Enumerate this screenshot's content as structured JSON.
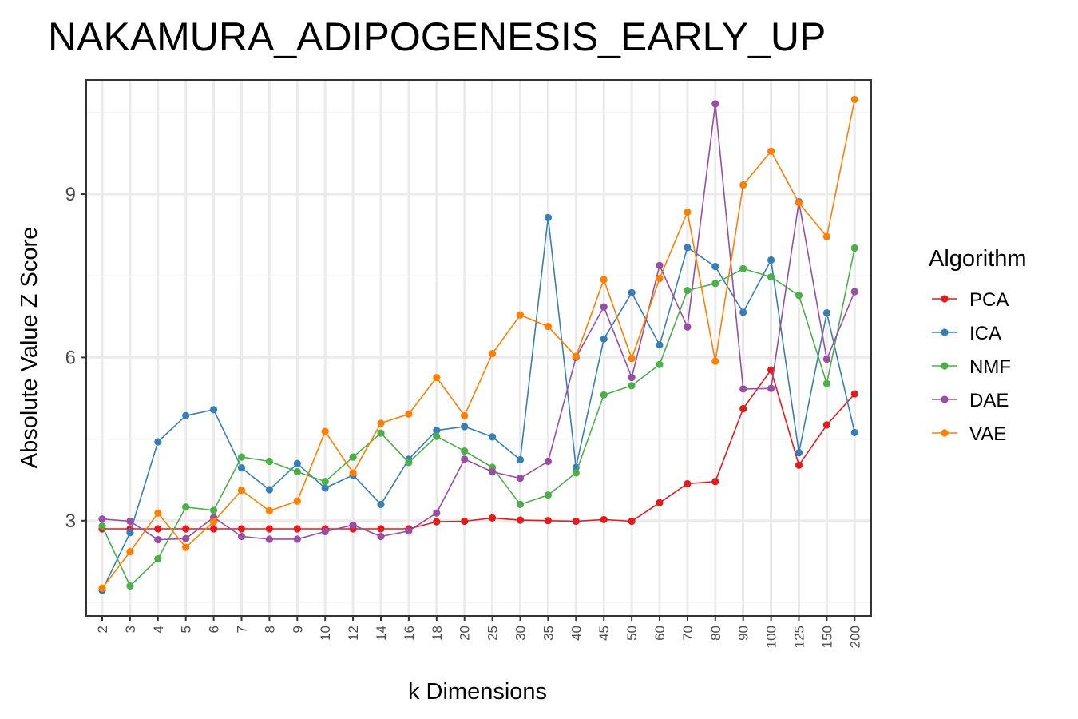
{
  "chart_data": {
    "type": "line",
    "title": "NAKAMURA_ADIPOGENESIS_EARLY_UP",
    "xlabel": "k Dimensions",
    "ylabel": "Absolute Value Z Score",
    "categories": [
      "2",
      "3",
      "4",
      "5",
      "6",
      "7",
      "8",
      "9",
      "10",
      "12",
      "14",
      "16",
      "18",
      "20",
      "25",
      "30",
      "35",
      "40",
      "45",
      "50",
      "60",
      "70",
      "80",
      "90",
      "100",
      "125",
      "150",
      "200"
    ],
    "yticks": [
      3,
      6,
      9
    ],
    "ylim": [
      1.25,
      11.1
    ],
    "grid": true,
    "legend": {
      "title": "Algorithm",
      "position": "right"
    },
    "series": [
      {
        "name": "PCA",
        "color": "#e41a1c",
        "values": [
          2.85,
          2.85,
          2.85,
          2.85,
          2.85,
          2.85,
          2.85,
          2.85,
          2.85,
          2.85,
          2.85,
          2.85,
          2.98,
          2.99,
          3.05,
          3.01,
          3.0,
          2.99,
          3.02,
          2.99,
          3.33,
          3.68,
          3.72,
          5.06,
          5.77,
          4.02,
          4.76,
          5.33
        ]
      },
      {
        "name": "ICA",
        "color": "#377eb8",
        "values": [
          1.72,
          2.78,
          4.45,
          4.93,
          5.04,
          3.97,
          3.57,
          4.05,
          3.6,
          3.84,
          3.3,
          4.13,
          4.66,
          4.73,
          4.54,
          4.12,
          8.57,
          3.98,
          6.34,
          7.19,
          6.23,
          8.02,
          7.67,
          6.83,
          7.79,
          4.25,
          6.82,
          4.62
        ]
      },
      {
        "name": "NMF",
        "color": "#4daf4a",
        "values": [
          2.9,
          1.8,
          2.3,
          3.25,
          3.19,
          4.17,
          4.09,
          3.9,
          3.72,
          4.17,
          4.61,
          4.07,
          4.55,
          4.28,
          3.98,
          3.3,
          3.47,
          3.88,
          5.31,
          5.48,
          5.87,
          7.23,
          7.36,
          7.63,
          7.48,
          7.14,
          5.52,
          8.01
        ]
      },
      {
        "name": "DAE",
        "color": "#984ea3",
        "values": [
          3.03,
          2.99,
          2.65,
          2.67,
          3.06,
          2.71,
          2.66,
          2.66,
          2.8,
          2.92,
          2.71,
          2.81,
          3.14,
          4.13,
          3.9,
          3.78,
          4.09,
          6.0,
          6.93,
          5.63,
          7.69,
          6.56,
          10.66,
          5.42,
          5.43,
          8.86,
          5.97,
          7.21
        ]
      },
      {
        "name": "VAE",
        "color": "#ff7f00",
        "values": [
          1.76,
          2.43,
          3.14,
          2.51,
          2.98,
          3.56,
          3.18,
          3.36,
          4.64,
          3.88,
          4.79,
          4.96,
          5.63,
          4.93,
          6.07,
          6.78,
          6.57,
          6.02,
          7.43,
          5.98,
          7.45,
          8.67,
          5.93,
          9.17,
          9.79,
          8.84,
          8.22,
          10.74
        ]
      }
    ]
  }
}
